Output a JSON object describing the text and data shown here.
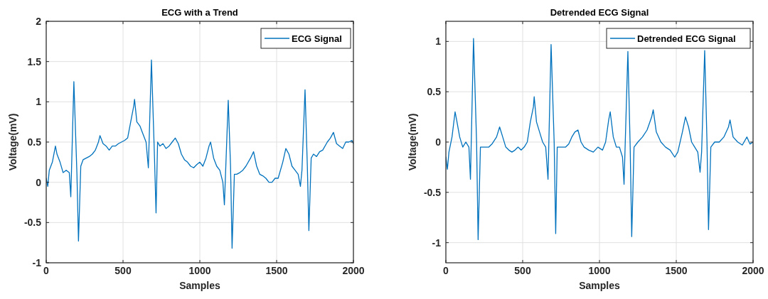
{
  "chart_data": [
    {
      "type": "line",
      "title": "ECG with a Trend",
      "xlabel": "Samples",
      "ylabel": "Voltage(mV)",
      "xlim": [
        0,
        2000
      ],
      "xticks": [
        0,
        500,
        1000,
        1500,
        2000
      ],
      "ylim": [
        -1,
        2
      ],
      "yticks": [
        -1,
        -0.5,
        0,
        0.5,
        1,
        1.5,
        2
      ],
      "grid": true,
      "legend": "top right",
      "series": [
        {
          "name": "ECG Signal",
          "color": "#0072bd",
          "x": [
            0,
            10,
            20,
            40,
            60,
            70,
            90,
            110,
            130,
            150,
            160,
            180,
            200,
            210,
            225,
            240,
            260,
            280,
            300,
            320,
            340,
            350,
            370,
            390,
            410,
            430,
            450,
            470,
            490,
            510,
            530,
            550,
            570,
            575,
            590,
            610,
            630,
            650,
            665,
            685,
            705,
            715,
            725,
            740,
            760,
            780,
            800,
            820,
            840,
            860,
            880,
            900,
            920,
            940,
            960,
            980,
            1000,
            1020,
            1040,
            1060,
            1070,
            1090,
            1110,
            1130,
            1150,
            1160,
            1185,
            1200,
            1210,
            1225,
            1240,
            1260,
            1280,
            1300,
            1330,
            1350,
            1370,
            1390,
            1410,
            1430,
            1450,
            1470,
            1490,
            1510,
            1540,
            1560,
            1580,
            1600,
            1620,
            1640,
            1655,
            1665,
            1685,
            1700,
            1710,
            1725,
            1740,
            1760,
            1780,
            1800,
            1830,
            1850,
            1870,
            1890,
            1910,
            1930,
            1950,
            1970,
            1990,
            2000
          ],
          "values": [
            0.05,
            -0.05,
            0.15,
            0.25,
            0.45,
            0.35,
            0.25,
            0.12,
            0.15,
            0.12,
            -0.18,
            1.25,
            0.1,
            -0.73,
            0.2,
            0.28,
            0.3,
            0.32,
            0.35,
            0.4,
            0.5,
            0.58,
            0.48,
            0.45,
            0.4,
            0.45,
            0.45,
            0.48,
            0.5,
            0.52,
            0.55,
            0.75,
            0.95,
            1.03,
            0.75,
            0.7,
            0.6,
            0.5,
            0.18,
            1.52,
            0.3,
            -0.38,
            0.5,
            0.45,
            0.48,
            0.42,
            0.45,
            0.5,
            0.55,
            0.48,
            0.35,
            0.28,
            0.25,
            0.2,
            0.18,
            0.22,
            0.25,
            0.2,
            0.3,
            0.45,
            0.5,
            0.3,
            0.2,
            0.15,
            0.0,
            -0.28,
            1.02,
            0.2,
            -0.82,
            0.1,
            0.1,
            0.12,
            0.15,
            0.2,
            0.3,
            0.38,
            0.2,
            0.1,
            0.08,
            0.05,
            0.0,
            0.0,
            0.05,
            0.05,
            0.25,
            0.42,
            0.35,
            0.2,
            0.15,
            0.1,
            -0.05,
            0.15,
            1.15,
            0.2,
            -0.6,
            0.3,
            0.35,
            0.32,
            0.38,
            0.4,
            0.5,
            0.55,
            0.62,
            0.48,
            0.45,
            0.42,
            0.5,
            0.5,
            0.52,
            0.48
          ]
        }
      ]
    },
    {
      "type": "line",
      "title": "Detrended ECG Signal",
      "xlabel": "Samples",
      "ylabel": "Voltage(mV)",
      "xlim": [
        0,
        2000
      ],
      "xticks": [
        0,
        500,
        1000,
        1500,
        2000
      ],
      "ylim": [
        -1.2,
        1.2
      ],
      "yticks": [
        -1,
        -0.5,
        0,
        0.5,
        1
      ],
      "grid": true,
      "legend": "top right",
      "series": [
        {
          "name": "Detrended ECG Signal",
          "color": "#0072bd",
          "x": [
            0,
            10,
            20,
            40,
            60,
            70,
            90,
            110,
            130,
            150,
            160,
            180,
            200,
            210,
            225,
            250,
            280,
            300,
            330,
            350,
            370,
            390,
            410,
            430,
            450,
            470,
            490,
            510,
            530,
            550,
            570,
            575,
            590,
            610,
            630,
            650,
            665,
            685,
            705,
            715,
            725,
            750,
            780,
            800,
            820,
            840,
            860,
            880,
            900,
            930,
            960,
            990,
            1020,
            1040,
            1060,
            1070,
            1090,
            1110,
            1130,
            1150,
            1160,
            1185,
            1200,
            1210,
            1225,
            1250,
            1280,
            1310,
            1340,
            1350,
            1370,
            1400,
            1430,
            1460,
            1490,
            1510,
            1540,
            1560,
            1580,
            1600,
            1620,
            1640,
            1655,
            1665,
            1685,
            1700,
            1710,
            1725,
            1750,
            1780,
            1810,
            1840,
            1850,
            1870,
            1900,
            1930,
            1960,
            1980,
            2000
          ],
          "values": [
            -0.15,
            -0.27,
            -0.1,
            0.05,
            0.3,
            0.22,
            0.05,
            -0.05,
            0.0,
            -0.05,
            -0.37,
            1.03,
            0.0,
            -0.97,
            -0.05,
            -0.05,
            -0.05,
            -0.02,
            0.05,
            0.15,
            0.05,
            -0.05,
            -0.08,
            -0.1,
            -0.08,
            -0.05,
            -0.08,
            -0.05,
            0.0,
            0.2,
            0.35,
            0.45,
            0.2,
            0.1,
            0.0,
            -0.05,
            -0.37,
            0.97,
            0.0,
            -0.91,
            -0.05,
            -0.05,
            -0.05,
            -0.02,
            0.05,
            0.1,
            0.12,
            0.0,
            -0.05,
            -0.08,
            -0.1,
            -0.05,
            -0.08,
            0.0,
            0.22,
            0.3,
            0.05,
            -0.05,
            -0.05,
            -0.15,
            -0.42,
            0.9,
            -0.05,
            -0.94,
            -0.05,
            0.0,
            0.05,
            0.12,
            0.25,
            0.32,
            0.1,
            0.0,
            -0.05,
            -0.08,
            -0.15,
            -0.1,
            0.1,
            0.25,
            0.15,
            0.0,
            -0.05,
            -0.1,
            -0.3,
            -0.1,
            0.91,
            0.0,
            -0.87,
            -0.05,
            0.0,
            0.0,
            0.05,
            0.15,
            0.22,
            0.05,
            0.0,
            -0.03,
            0.05,
            -0.02,
            0.0
          ]
        }
      ]
    }
  ]
}
